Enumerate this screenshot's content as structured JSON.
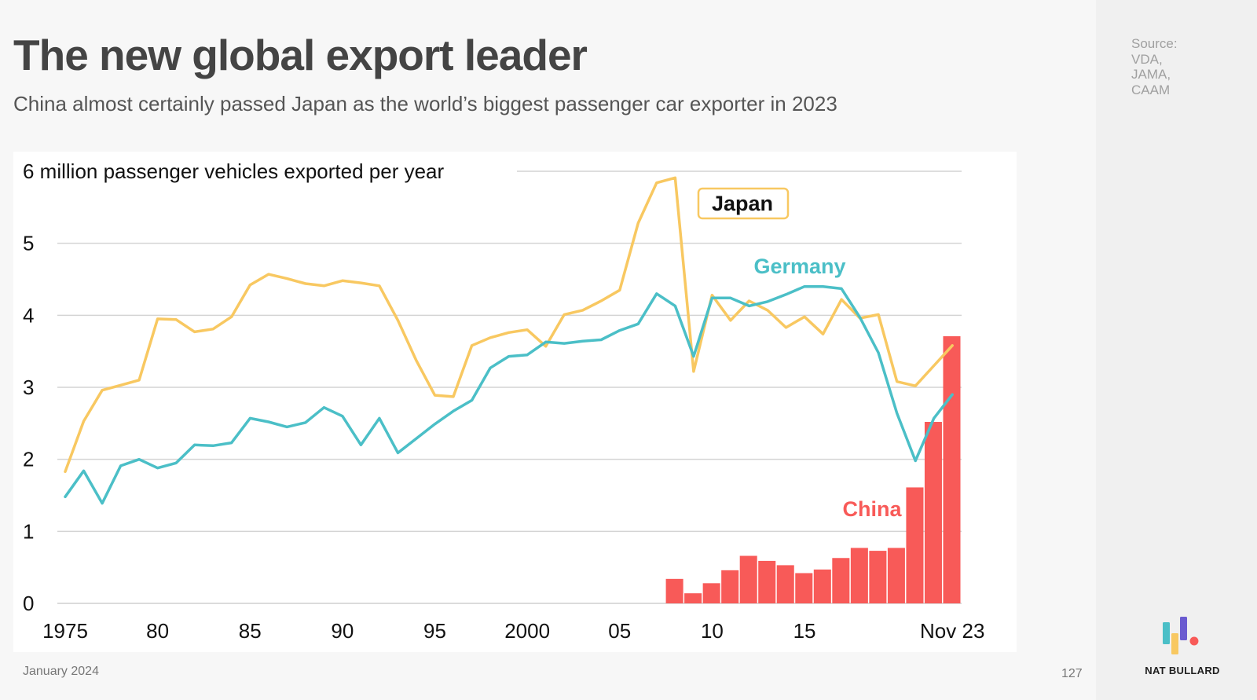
{
  "header": {
    "title": "The new global export leader",
    "subtitle": "China almost certainly passed Japan as the world’s biggest passenger car exporter in 2023"
  },
  "source": {
    "lines": [
      "Source:",
      "VDA,",
      "JAMA,",
      "CAAM"
    ]
  },
  "footer": {
    "date": "January 2024",
    "page_number": "127"
  },
  "brand": {
    "name": "NAT BULLARD"
  },
  "colors": {
    "japan": "#f8c861",
    "germany": "#4bbfc7",
    "china": "#f85a58",
    "grid": "#d4d4d4",
    "axis_text": "#111111"
  },
  "chart_data": {
    "type": "line",
    "ylabel": "6 million passenger vehicles exported per year",
    "ylim": [
      0,
      6
    ],
    "yticks": [
      {
        "value": 0,
        "label": "0"
      },
      {
        "value": 1,
        "label": "1"
      },
      {
        "value": 2,
        "label": "2"
      },
      {
        "value": 3,
        "label": "3"
      },
      {
        "value": 4,
        "label": "4"
      },
      {
        "value": 5,
        "label": "5"
      },
      {
        "value": 6,
        "label": "6 million passenger vehicles exported per year"
      }
    ],
    "xlim": [
      1975,
      2023.5
    ],
    "xticks": [
      {
        "value": 1975,
        "label": "1975"
      },
      {
        "value": 1980,
        "label": "80"
      },
      {
        "value": 1985,
        "label": "85"
      },
      {
        "value": 1990,
        "label": "90"
      },
      {
        "value": 1995,
        "label": "95"
      },
      {
        "value": 2000,
        "label": "2000"
      },
      {
        "value": 2005,
        "label": "05"
      },
      {
        "value": 2010,
        "label": "10"
      },
      {
        "value": 2015,
        "label": "15"
      },
      {
        "value": 2023,
        "label": "Nov 23"
      }
    ],
    "series": [
      {
        "name": "Japan",
        "type": "line",
        "color": "#f8c861",
        "x": [
          1975,
          1976,
          1977,
          1978,
          1979,
          1980,
          1981,
          1982,
          1983,
          1984,
          1985,
          1986,
          1987,
          1988,
          1989,
          1990,
          1991,
          1992,
          1993,
          1994,
          1995,
          1996,
          1997,
          1998,
          1999,
          2000,
          2001,
          2002,
          2003,
          2004,
          2005,
          2006,
          2007,
          2008,
          2009,
          2010,
          2011,
          2012,
          2013,
          2014,
          2015,
          2016,
          2017,
          2018,
          2019,
          2020,
          2021,
          2022,
          2023
        ],
        "values": [
          1.83,
          2.53,
          2.96,
          3.03,
          3.1,
          3.95,
          3.94,
          3.77,
          3.81,
          3.98,
          4.42,
          4.57,
          4.51,
          4.44,
          4.41,
          4.48,
          4.45,
          4.41,
          3.93,
          3.37,
          2.89,
          2.87,
          3.58,
          3.69,
          3.76,
          3.8,
          3.57,
          4.01,
          4.07,
          4.2,
          4.35,
          5.28,
          5.84,
          5.91,
          3.22,
          4.28,
          3.93,
          4.2,
          4.07,
          3.83,
          3.98,
          3.74,
          4.22,
          3.96,
          4.01,
          3.08,
          3.02,
          3.3,
          3.58
        ]
      },
      {
        "name": "Germany",
        "type": "line",
        "color": "#4bbfc7",
        "x": [
          1975,
          1976,
          1977,
          1978,
          1979,
          1980,
          1981,
          1982,
          1983,
          1984,
          1985,
          1986,
          1987,
          1988,
          1989,
          1990,
          1991,
          1992,
          1993,
          1994,
          1995,
          1996,
          1997,
          1998,
          1999,
          2000,
          2001,
          2002,
          2003,
          2004,
          2005,
          2006,
          2007,
          2008,
          2009,
          2010,
          2011,
          2012,
          2013,
          2014,
          2015,
          2016,
          2017,
          2018,
          2019,
          2020,
          2021,
          2022,
          2023
        ],
        "values": [
          1.48,
          1.84,
          1.39,
          1.91,
          2.0,
          1.88,
          1.95,
          2.2,
          2.19,
          2.23,
          2.57,
          2.52,
          2.45,
          2.51,
          2.72,
          2.6,
          2.2,
          2.57,
          2.09,
          2.29,
          2.49,
          2.67,
          2.82,
          3.27,
          3.43,
          3.45,
          3.63,
          3.61,
          3.64,
          3.66,
          3.79,
          3.88,
          4.3,
          4.13,
          3.43,
          4.24,
          4.24,
          4.13,
          4.19,
          4.29,
          4.4,
          4.4,
          4.37,
          3.97,
          3.48,
          2.64,
          1.98,
          2.57,
          2.9
        ]
      },
      {
        "name": "China",
        "type": "bar",
        "color": "#f85a58",
        "x": [
          2008,
          2009,
          2010,
          2011,
          2012,
          2013,
          2014,
          2015,
          2016,
          2017,
          2018,
          2019,
          2020,
          2021,
          2022,
          2023
        ],
        "values": [
          0.34,
          0.14,
          0.28,
          0.46,
          0.66,
          0.59,
          0.53,
          0.42,
          0.47,
          0.63,
          0.77,
          0.73,
          0.77,
          1.61,
          2.52,
          3.71
        ]
      }
    ],
    "annotations": [
      {
        "text": "Japan",
        "series": "Japan",
        "boxed": true
      },
      {
        "text": "Germany",
        "series": "Germany"
      },
      {
        "text": "China",
        "series": "China"
      }
    ],
    "grid": true,
    "legend": "none"
  }
}
